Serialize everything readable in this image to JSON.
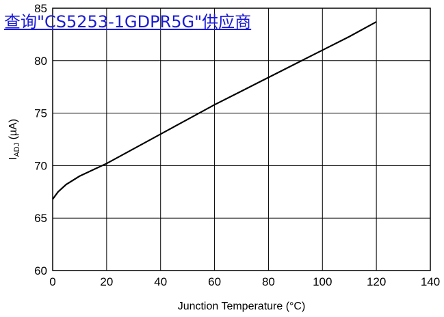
{
  "overlay": {
    "link_text": "查询\"CS5253-1GDPR5G\"供应商"
  },
  "chart_data": {
    "type": "line",
    "title": "",
    "xlabel": "Junction Temperature (°C)",
    "ylabel_main": "I",
    "ylabel_sub": "ADJ",
    "ylabel_unit": " (µA)",
    "xlim": [
      0,
      140
    ],
    "ylim": [
      60,
      85
    ],
    "x_ticks": [
      0,
      20,
      40,
      60,
      80,
      100,
      120,
      140
    ],
    "y_ticks": [
      60,
      65,
      70,
      75,
      80,
      85
    ],
    "grid": true,
    "series": [
      {
        "x": [
          0,
          2,
          5,
          10,
          15,
          20,
          30,
          40,
          50,
          60,
          70,
          80,
          90,
          100,
          110,
          120
        ],
        "y": [
          66.8,
          67.5,
          68.2,
          69.0,
          69.6,
          70.2,
          71.6,
          73.0,
          74.4,
          75.8,
          77.1,
          78.4,
          79.7,
          81.0,
          82.3,
          83.7
        ]
      }
    ]
  }
}
